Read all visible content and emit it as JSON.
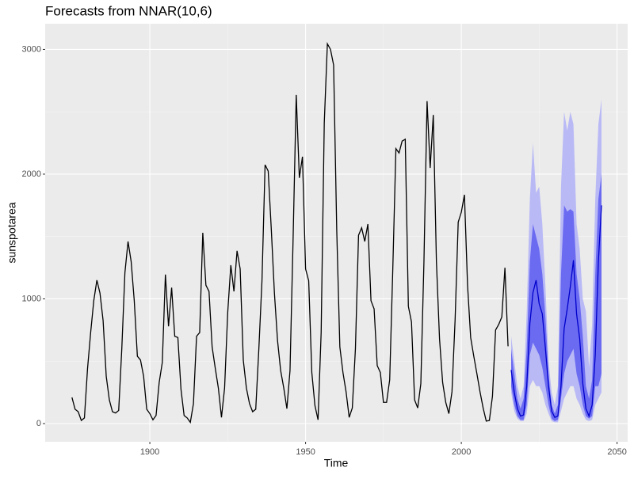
{
  "chart_data": {
    "type": "forecast",
    "title": "Forecasts from NNAR(10,6)",
    "x_label": "Time",
    "y_label": "sunspotarea",
    "x": [
      1875,
      1876,
      1877,
      1878,
      1879,
      1880,
      1881,
      1882,
      1883,
      1884,
      1885,
      1886,
      1887,
      1888,
      1889,
      1890,
      1891,
      1892,
      1893,
      1894,
      1895,
      1896,
      1897,
      1898,
      1899,
      1900,
      1901,
      1902,
      1903,
      1904,
      1905,
      1906,
      1907,
      1908,
      1909,
      1910,
      1911,
      1912,
      1913,
      1914,
      1915,
      1916,
      1917,
      1918,
      1919,
      1920,
      1921,
      1922,
      1923,
      1924,
      1925,
      1926,
      1927,
      1928,
      1929,
      1930,
      1931,
      1932,
      1933,
      1934,
      1935,
      1936,
      1937,
      1938,
      1939,
      1940,
      1941,
      1942,
      1943,
      1944,
      1945,
      1946,
      1947,
      1948,
      1949,
      1950,
      1951,
      1952,
      1953,
      1954,
      1955,
      1956,
      1957,
      1958,
      1959,
      1960,
      1961,
      1962,
      1963,
      1964,
      1965,
      1966,
      1967,
      1968,
      1969,
      1970,
      1971,
      1972,
      1973,
      1974,
      1975,
      1976,
      1977,
      1978,
      1979,
      1980,
      1981,
      1982,
      1983,
      1984,
      1985,
      1986,
      1987,
      1988,
      1989,
      1990,
      1991,
      1992,
      1993,
      1994,
      1995,
      1996,
      1997,
      1998,
      1999,
      2000,
      2001,
      2002,
      2003,
      2004,
      2005,
      2006,
      2007,
      2008,
      2009,
      2010,
      2011,
      2012,
      2013,
      2014,
      2015
    ],
    "values": [
      210,
      115,
      95,
      25,
      45,
      440,
      730,
      985,
      1150,
      1045,
      825,
      380,
      190,
      95,
      85,
      105,
      600,
      1210,
      1460,
      1300,
      985,
      540,
      510,
      380,
      115,
      80,
      30,
      65,
      330,
      490,
      1195,
      780,
      1090,
      700,
      690,
      275,
      65,
      45,
      10,
      160,
      700,
      730,
      1530,
      1110,
      1060,
      615,
      445,
      285,
      50,
      285,
      890,
      1270,
      1060,
      1385,
      1240,
      510,
      285,
      160,
      95,
      115,
      600,
      1145,
      2075,
      2025,
      1555,
      1045,
      665,
      425,
      285,
      120,
      425,
      1490,
      2635,
      1970,
      2140,
      1240,
      1145,
      410,
      145,
      30,
      730,
      2410,
      3045,
      3000,
      2875,
      1555,
      615,
      410,
      255,
      50,
      125,
      600,
      1510,
      1570,
      1460,
      1600,
      985,
      920,
      465,
      410,
      170,
      170,
      350,
      1240,
      2205,
      2170,
      2265,
      2280,
      940,
      815,
      190,
      125,
      320,
      1300,
      2585,
      2050,
      2475,
      1300,
      680,
      330,
      170,
      80,
      255,
      830,
      1615,
      1695,
      1835,
      1110,
      690,
      540,
      400,
      255,
      125,
      20,
      25,
      220,
      750,
      795,
      855,
      1250,
      620
    ],
    "color": "#000000",
    "forecast": {
      "x": [
        2016,
        2017,
        2018,
        2019,
        2020,
        2021,
        2022,
        2023,
        2024,
        2025,
        2026,
        2027,
        2028,
        2029,
        2030,
        2031,
        2032,
        2033,
        2034,
        2035,
        2036,
        2037,
        2038,
        2039,
        2040,
        2041,
        2042,
        2043,
        2044,
        2045
      ],
      "mean": [
        430,
        250,
        120,
        60,
        70,
        300,
        800,
        1050,
        1150,
        960,
        880,
        600,
        300,
        100,
        50,
        60,
        300,
        760,
        920,
        1100,
        1310,
        880,
        680,
        320,
        120,
        60,
        150,
        550,
        1300,
        1750
      ],
      "lo80": [
        300,
        150,
        60,
        30,
        30,
        150,
        550,
        650,
        600,
        550,
        450,
        300,
        150,
        40,
        20,
        30,
        200,
        400,
        500,
        550,
        600,
        400,
        300,
        150,
        60,
        40,
        60,
        300,
        300,
        400
      ],
      "hi80": [
        600,
        400,
        200,
        120,
        200,
        600,
        1300,
        1600,
        1500,
        1400,
        1200,
        850,
        400,
        150,
        80,
        150,
        1200,
        1750,
        1700,
        1720,
        1700,
        1200,
        1000,
        700,
        300,
        200,
        350,
        1200,
        1800,
        2000
      ],
      "lo95": [
        250,
        100,
        40,
        20,
        20,
        80,
        300,
        350,
        300,
        300,
        250,
        150,
        80,
        20,
        10,
        10,
        100,
        200,
        250,
        300,
        300,
        200,
        150,
        80,
        30,
        20,
        30,
        150,
        200,
        250
      ],
      "hi95": [
        700,
        500,
        300,
        200,
        300,
        900,
        1800,
        2250,
        1850,
        1900,
        1600,
        1100,
        500,
        250,
        150,
        300,
        1900,
        2500,
        2350,
        2500,
        2400,
        1600,
        1400,
        1000,
        900,
        450,
        800,
        1800,
        2400,
        2600
      ],
      "color": "#0000cc",
      "color80": "#6b6bf2",
      "color95": "#b9b9f6"
    },
    "xlim": [
      1866.4,
      2053.4
    ],
    "ylim": [
      -146,
      3206
    ],
    "xticks": [
      1900,
      1950,
      2000,
      2050
    ],
    "yticks": [
      0,
      1000,
      2000,
      3000
    ],
    "grid": true
  }
}
